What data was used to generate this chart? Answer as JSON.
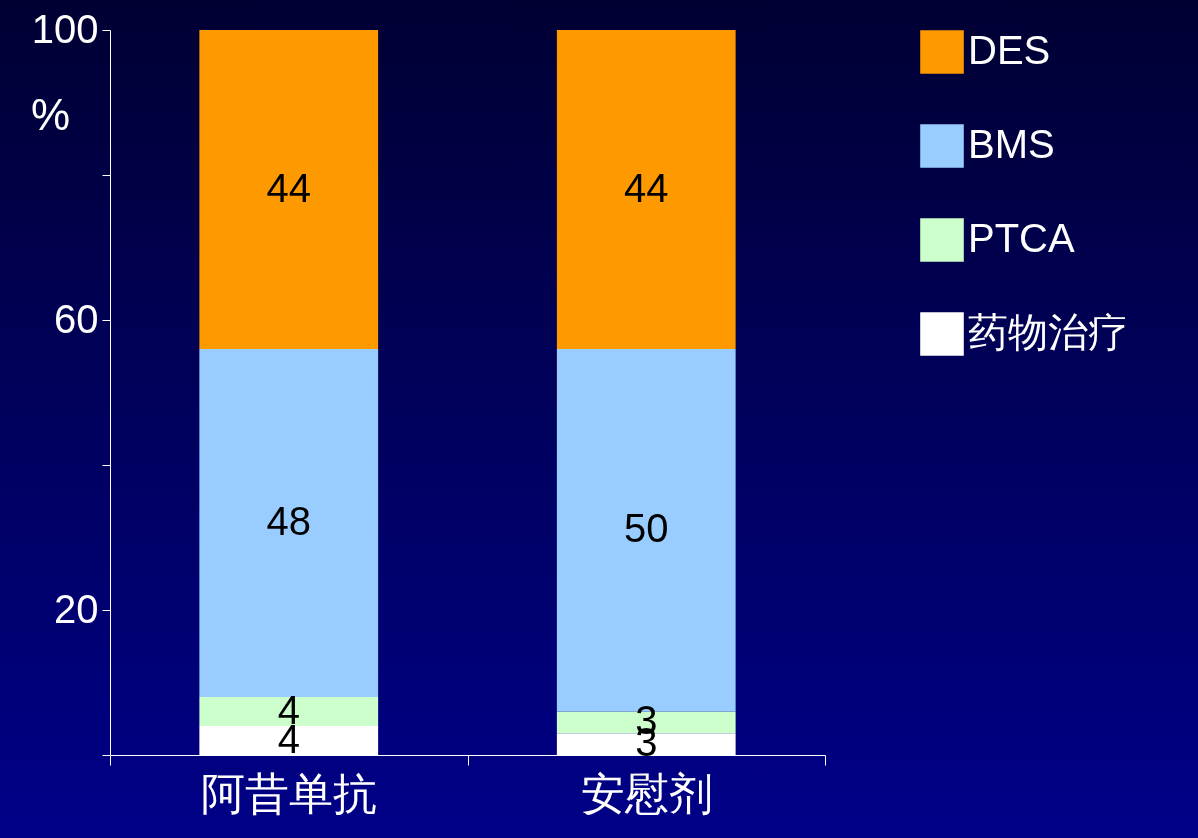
{
  "chart_data": {
    "type": "bar",
    "stacked": true,
    "ylabel": "%",
    "categories": [
      "阿昔单抗",
      "安慰剂"
    ],
    "series": [
      {
        "name": "药物治疗",
        "color": "#ffffff",
        "values": [
          4,
          3
        ]
      },
      {
        "name": "PTCA",
        "color": "#ccffcc",
        "values": [
          4,
          3
        ]
      },
      {
        "name": "BMS",
        "color": "#99ccff",
        "values": [
          48,
          50
        ]
      },
      {
        "name": "DES",
        "color": "#ff9900",
        "values": [
          44,
          44
        ]
      }
    ],
    "ylim": [
      0,
      100
    ],
    "yticks": [
      {
        "value": 0,
        "label": null
      },
      20,
      {
        "value": 40,
        "label": null
      },
      60,
      {
        "value": 80,
        "label": null
      },
      100
    ],
    "data_labels": true,
    "legend": "top right",
    "grid": false
  }
}
